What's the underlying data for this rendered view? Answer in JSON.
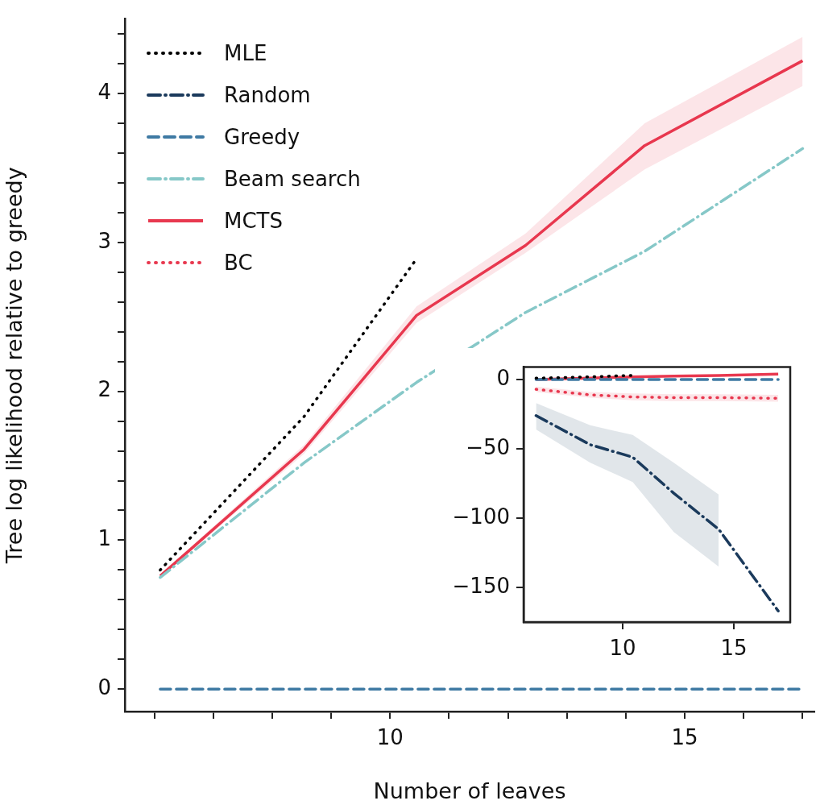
{
  "chart_data": [
    {
      "type": "line",
      "xlabel": "Number of leaves",
      "ylabel": "Tree log likelihood relative to greedy",
      "legend": "top left",
      "x": [
        6.1,
        8.54,
        10.45,
        12.3,
        14.32,
        17.0
      ],
      "xlim": [
        5.5,
        17.2
      ],
      "ylim": [
        -0.15,
        4.5
      ],
      "xticks": [
        {
          "value": 6,
          "label": null
        },
        {
          "value": 7,
          "label": null
        },
        {
          "value": 8,
          "label": null
        },
        {
          "value": 9,
          "label": null
        },
        {
          "value": 10,
          "label": "10"
        },
        {
          "value": 11,
          "label": null
        },
        {
          "value": 12,
          "label": null
        },
        {
          "value": 13,
          "label": null
        },
        {
          "value": 14,
          "label": null
        },
        {
          "value": 15,
          "label": "15"
        },
        {
          "value": 16,
          "label": null
        },
        {
          "value": 17,
          "label": null
        }
      ],
      "yticks": [
        0,
        {
          "value": 0.2,
          "label": null
        },
        {
          "value": 0.4,
          "label": null
        },
        {
          "value": 0.6,
          "label": null
        },
        {
          "value": 0.8,
          "label": null
        },
        1,
        {
          "value": 1.2,
          "label": null
        },
        {
          "value": 1.4,
          "label": null
        },
        {
          "value": 1.6,
          "label": null
        },
        {
          "value": 1.8,
          "label": null
        },
        2,
        {
          "value": 2.2,
          "label": null
        },
        {
          "value": 2.4,
          "label": null
        },
        {
          "value": 2.6,
          "label": null
        },
        {
          "value": 2.8,
          "label": null
        },
        3,
        {
          "value": 3.2,
          "label": null
        },
        {
          "value": 3.4,
          "label": null
        },
        {
          "value": 3.6,
          "label": null
        },
        {
          "value": 3.8,
          "label": null
        },
        4,
        {
          "value": 4.2,
          "label": null
        },
        {
          "value": 4.4,
          "label": null
        }
      ],
      "series": [
        {
          "name": "MLE",
          "color": "#000000",
          "line_style": "dotted",
          "values": [
            0.8,
            1.83,
            2.89,
            null,
            null,
            null
          ]
        },
        {
          "name": "Random",
          "color": "#1b3a5c",
          "line_style": "dashdot",
          "values": [
            null,
            null,
            null,
            null,
            null,
            null
          ]
        },
        {
          "name": "Greedy",
          "color": "#3f7aa3",
          "line_style": "dashed",
          "values": [
            0,
            0,
            0,
            0,
            0,
            0
          ]
        },
        {
          "name": "Beam search",
          "color": "#86c8c8",
          "line_style": "dashdot",
          "values": [
            0.75,
            1.52,
            2.06,
            2.53,
            2.94,
            3.63
          ]
        },
        {
          "name": "MCTS",
          "color": "#e8384f",
          "line_style": "solid",
          "values": [
            0.76,
            1.61,
            2.51,
            2.98,
            3.65,
            4.22
          ],
          "lower": [
            0.75,
            1.58,
            2.46,
            2.93,
            3.49,
            4.05
          ],
          "upper": [
            0.77,
            1.64,
            2.57,
            3.06,
            3.8,
            4.38
          ]
        },
        {
          "name": "BC",
          "color": "#e8384f",
          "line_style": "dotted",
          "values": [
            null,
            null,
            null,
            null,
            null,
            null
          ]
        }
      ]
    },
    {
      "type": "line",
      "x": [
        6.1,
        8.54,
        10.45,
        12.3,
        14.32,
        17.0
      ],
      "xlim": [
        5.54,
        17.54
      ],
      "ylim": [
        -175,
        9
      ],
      "xticks": [
        {
          "value": 10,
          "label": "10"
        },
        {
          "value": 15,
          "label": "15"
        }
      ],
      "yticks": [
        0,
        {
          "value": -50,
          "label": "−50"
        },
        {
          "value": -100,
          "label": "−100"
        },
        {
          "value": -150,
          "label": "−150"
        }
      ],
      "series": [
        {
          "color": "#000000",
          "line_style": "dotted",
          "values": [
            1,
            2,
            3,
            null,
            null,
            null
          ]
        },
        {
          "color": "#1b3a5c",
          "line_style": "dashdot",
          "values": [
            -26,
            -47,
            -56,
            -82,
            -108,
            -167
          ],
          "lower": [
            -36,
            -60,
            -74,
            -110,
            -135,
            null
          ],
          "upper": [
            -17,
            -33,
            -40,
            -60,
            -83,
            null
          ]
        },
        {
          "color": "#3f7aa3",
          "line_style": "dashed",
          "values": [
            0,
            0,
            0,
            0,
            0,
            0
          ]
        },
        {
          "color": "#e8384f",
          "line_style": "dotted",
          "values": [
            -7,
            -11,
            -12.5,
            -13,
            -13,
            -13.5
          ],
          "lower": [
            -9,
            -13,
            -15,
            -15.5,
            -15.5,
            -16
          ],
          "upper": [
            -5,
            -9,
            -10,
            -10.5,
            -10.5,
            -11
          ]
        },
        {
          "color": "#e8384f",
          "line_style": "solid",
          "values": [
            0,
            1,
            2,
            2.5,
            3,
            4
          ]
        }
      ]
    }
  ]
}
